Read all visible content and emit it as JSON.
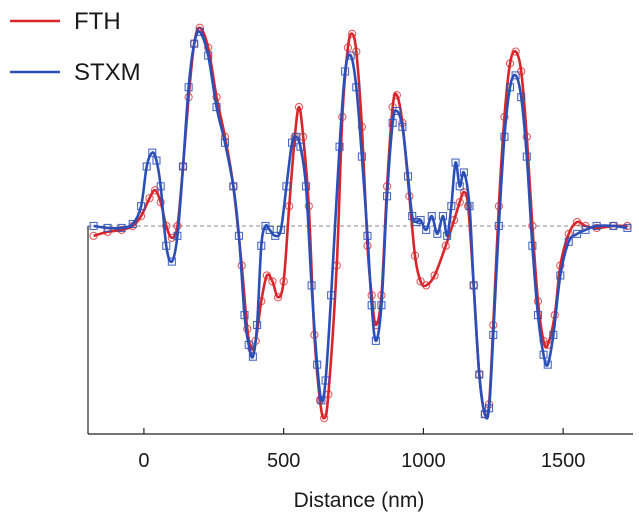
{
  "chart_data": {
    "type": "line",
    "title": "",
    "xlabel": "Distance (nm)",
    "ylabel": "",
    "xlim": [
      -200,
      1750
    ],
    "ylim": [
      -1.05,
      1.1
    ],
    "xticks": [
      0,
      500,
      1000,
      1500
    ],
    "x_tick_labels": [
      "0",
      "500",
      "1000",
      "1500"
    ],
    "grid": false,
    "zero_line": true,
    "legend_position": "top-left",
    "series": [
      {
        "name": "FTH",
        "color": "#d8262a",
        "marker": "circle",
        "points": [
          [
            -180,
            -0.05
          ],
          [
            -130,
            -0.03
          ],
          [
            -80,
            -0.02
          ],
          [
            -40,
            0.0
          ],
          [
            -10,
            0.05
          ],
          [
            20,
            0.14
          ],
          [
            40,
            0.18
          ],
          [
            60,
            0.12
          ],
          [
            80,
            0.0
          ],
          [
            100,
            -0.06
          ],
          [
            120,
            0.0
          ],
          [
            140,
            0.3
          ],
          [
            160,
            0.65
          ],
          [
            180,
            0.92
          ],
          [
            200,
            1.0
          ],
          [
            230,
            0.9
          ],
          [
            260,
            0.65
          ],
          [
            290,
            0.45
          ],
          [
            320,
            0.2
          ],
          [
            350,
            -0.2
          ],
          [
            370,
            -0.52
          ],
          [
            385,
            -0.62
          ],
          [
            400,
            -0.58
          ],
          [
            420,
            -0.38
          ],
          [
            440,
            -0.25
          ],
          [
            460,
            -0.28
          ],
          [
            480,
            -0.36
          ],
          [
            500,
            -0.28
          ],
          [
            520,
            0.1
          ],
          [
            540,
            0.45
          ],
          [
            555,
            0.6
          ],
          [
            570,
            0.45
          ],
          [
            590,
            0.1
          ],
          [
            610,
            -0.55
          ],
          [
            630,
            -0.88
          ],
          [
            645,
            -0.97
          ],
          [
            660,
            -0.85
          ],
          [
            690,
            -0.2
          ],
          [
            710,
            0.55
          ],
          [
            730,
            0.9
          ],
          [
            745,
            0.97
          ],
          [
            760,
            0.88
          ],
          [
            780,
            0.5
          ],
          [
            800,
            -0.1
          ],
          [
            815,
            -0.35
          ],
          [
            830,
            -0.5
          ],
          [
            850,
            -0.35
          ],
          [
            870,
            0.2
          ],
          [
            890,
            0.6
          ],
          [
            905,
            0.66
          ],
          [
            925,
            0.52
          ],
          [
            950,
            0.15
          ],
          [
            970,
            -0.15
          ],
          [
            990,
            -0.28
          ],
          [
            1010,
            -0.3
          ],
          [
            1040,
            -0.25
          ],
          [
            1080,
            -0.1
          ],
          [
            1110,
            0.03
          ],
          [
            1130,
            0.12
          ],
          [
            1145,
            0.17
          ],
          [
            1160,
            0.1
          ],
          [
            1180,
            -0.3
          ],
          [
            1200,
            -0.75
          ],
          [
            1220,
            -0.95
          ],
          [
            1235,
            -0.9
          ],
          [
            1250,
            -0.5
          ],
          [
            1270,
            0.1
          ],
          [
            1290,
            0.55
          ],
          [
            1310,
            0.82
          ],
          [
            1330,
            0.88
          ],
          [
            1350,
            0.78
          ],
          [
            1370,
            0.45
          ],
          [
            1390,
            0.0
          ],
          [
            1410,
            -0.38
          ],
          [
            1430,
            -0.58
          ],
          [
            1445,
            -0.6
          ],
          [
            1470,
            -0.45
          ],
          [
            1490,
            -0.2
          ],
          [
            1520,
            -0.04
          ],
          [
            1550,
            0.02
          ],
          [
            1580,
            0.0
          ],
          [
            1620,
            -0.01
          ],
          [
            1680,
            0.0
          ],
          [
            1730,
            0.0
          ]
        ]
      },
      {
        "name": "STXM",
        "color": "#2a4fb8",
        "marker": "square",
        "points": [
          [
            -180,
            0.0
          ],
          [
            -130,
            -0.01
          ],
          [
            -80,
            -0.01
          ],
          [
            -40,
            0.01
          ],
          [
            -10,
            0.1
          ],
          [
            10,
            0.3
          ],
          [
            30,
            0.37
          ],
          [
            45,
            0.33
          ],
          [
            60,
            0.2
          ],
          [
            80,
            -0.1
          ],
          [
            100,
            -0.18
          ],
          [
            120,
            -0.05
          ],
          [
            140,
            0.3
          ],
          [
            160,
            0.7
          ],
          [
            180,
            0.92
          ],
          [
            200,
            0.98
          ],
          [
            230,
            0.86
          ],
          [
            260,
            0.6
          ],
          [
            290,
            0.42
          ],
          [
            320,
            0.2
          ],
          [
            340,
            -0.05
          ],
          [
            360,
            -0.45
          ],
          [
            375,
            -0.6
          ],
          [
            390,
            -0.66
          ],
          [
            405,
            -0.5
          ],
          [
            420,
            -0.1
          ],
          [
            435,
            0.0
          ],
          [
            450,
            -0.02
          ],
          [
            470,
            -0.05
          ],
          [
            490,
            -0.02
          ],
          [
            510,
            0.2
          ],
          [
            530,
            0.42
          ],
          [
            545,
            0.45
          ],
          [
            560,
            0.4
          ],
          [
            580,
            0.2
          ],
          [
            600,
            -0.3
          ],
          [
            620,
            -0.7
          ],
          [
            635,
            -0.88
          ],
          [
            650,
            -0.78
          ],
          [
            670,
            -0.35
          ],
          [
            700,
            0.4
          ],
          [
            720,
            0.78
          ],
          [
            740,
            0.86
          ],
          [
            760,
            0.7
          ],
          [
            780,
            0.35
          ],
          [
            800,
            -0.05
          ],
          [
            815,
            -0.4
          ],
          [
            830,
            -0.58
          ],
          [
            850,
            -0.4
          ],
          [
            870,
            0.15
          ],
          [
            890,
            0.52
          ],
          [
            905,
            0.58
          ],
          [
            925,
            0.5
          ],
          [
            945,
            0.25
          ],
          [
            960,
            0.05
          ],
          [
            975,
            0.02
          ],
          [
            990,
            0.03
          ],
          [
            1010,
            -0.02
          ],
          [
            1030,
            0.05
          ],
          [
            1050,
            -0.04
          ],
          [
            1070,
            0.05
          ],
          [
            1085,
            -0.05
          ],
          [
            1100,
            0.1
          ],
          [
            1115,
            0.32
          ],
          [
            1130,
            0.2
          ],
          [
            1145,
            0.27
          ],
          [
            1165,
            0.1
          ],
          [
            1180,
            -0.3
          ],
          [
            1200,
            -0.75
          ],
          [
            1220,
            -0.95
          ],
          [
            1235,
            -0.92
          ],
          [
            1250,
            -0.55
          ],
          [
            1270,
            0.0
          ],
          [
            1290,
            0.45
          ],
          [
            1310,
            0.7
          ],
          [
            1330,
            0.76
          ],
          [
            1350,
            0.65
          ],
          [
            1370,
            0.35
          ],
          [
            1390,
            -0.1
          ],
          [
            1410,
            -0.45
          ],
          [
            1430,
            -0.65
          ],
          [
            1445,
            -0.7
          ],
          [
            1465,
            -0.55
          ],
          [
            1490,
            -0.25
          ],
          [
            1520,
            -0.08
          ],
          [
            1550,
            -0.04
          ],
          [
            1580,
            -0.02
          ],
          [
            1620,
            0.0
          ],
          [
            1680,
            0.0
          ],
          [
            1730,
            -0.01
          ]
        ]
      }
    ]
  }
}
